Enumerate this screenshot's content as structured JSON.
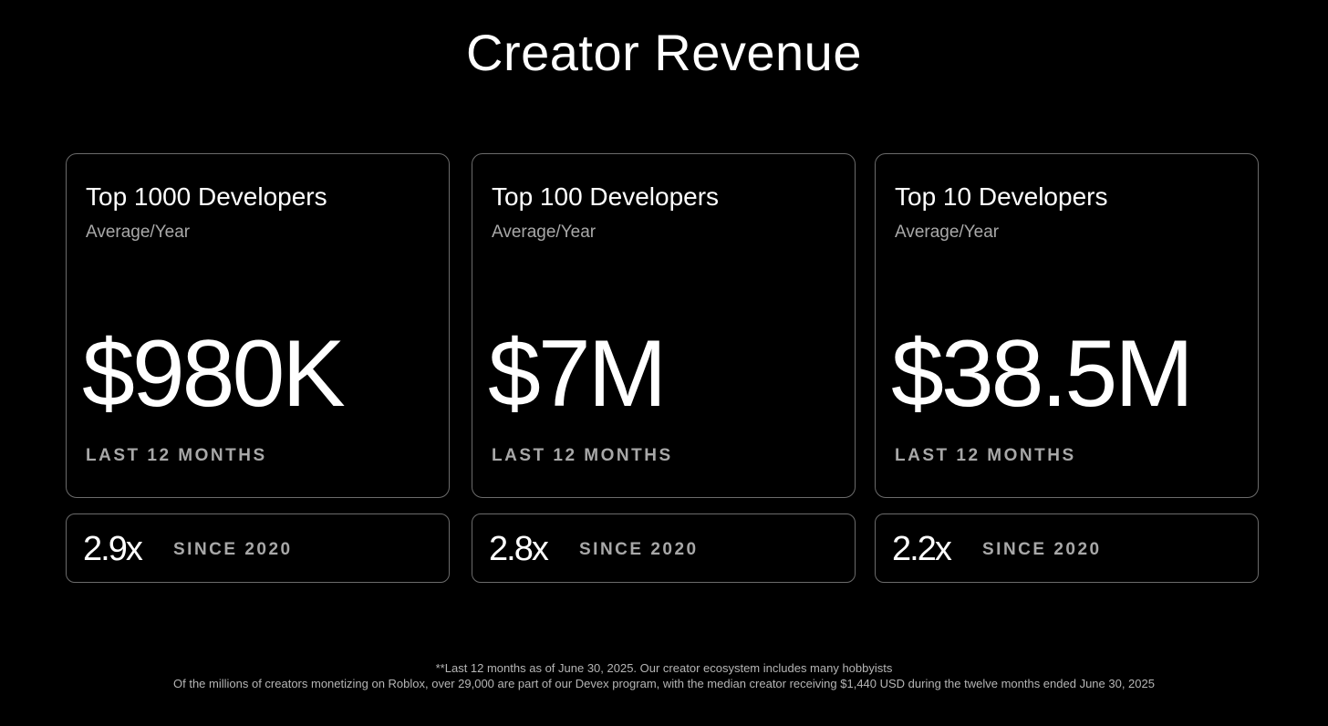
{
  "page_title": "Creator Revenue",
  "cards": [
    {
      "title": "Top 1000 Developers",
      "subtitle": "Average/Year",
      "value": "$980K",
      "period": "LAST 12 MONTHS",
      "growth_multiplier": "2.9x",
      "growth_label": "SINCE 2020"
    },
    {
      "title": "Top 100 Developers",
      "subtitle": "Average/Year",
      "value": "$7M",
      "period": "LAST 12 MONTHS",
      "growth_multiplier": "2.8x",
      "growth_label": "SINCE 2020"
    },
    {
      "title": "Top 10 Developers",
      "subtitle": "Average/Year",
      "value": "$38.5M",
      "period": "LAST 12 MONTHS",
      "growth_multiplier": "2.2x",
      "growth_label": "SINCE 2020"
    }
  ],
  "footnotes": {
    "line1": "**Last 12 months as of June 30, 2025. Our creator ecosystem includes many hobbyists",
    "line2": "Of the millions of creators monetizing on Roblox, over 29,000 are part of our Devex program, with the median creator receiving $1,440 USD during the twelve months ended June 30, 2025"
  },
  "colors": {
    "background": "#000000",
    "text_primary": "#ffffff",
    "text_secondary": "#a8a8a8",
    "border": "#6b6b6b"
  }
}
